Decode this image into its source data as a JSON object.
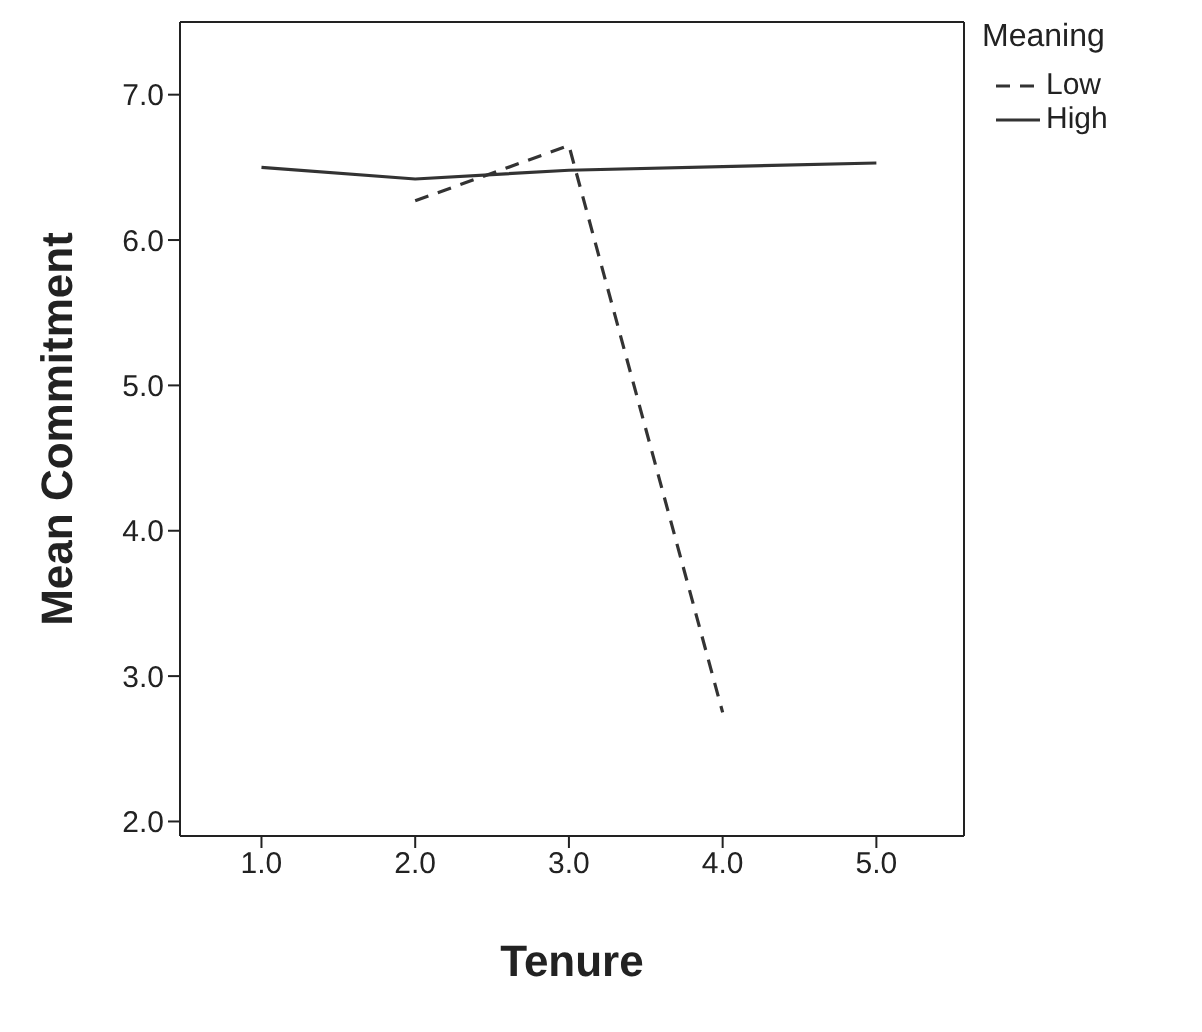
{
  "chart_data": {
    "type": "line",
    "xlabel": "Tenure",
    "ylabel": "Mean Commitment",
    "legend_title": "Meaning",
    "legend": "top right",
    "marker": "none",
    "xlim": [
      0.47,
      5.57
    ],
    "xticks": [
      {
        "value": 1,
        "label": "1.0"
      },
      {
        "value": 2,
        "label": "2.0"
      },
      {
        "value": 3,
        "label": "3.0"
      },
      {
        "value": 4,
        "label": "4.0"
      },
      {
        "value": 5,
        "label": "5.0"
      }
    ],
    "ylim": [
      1.9,
      7.5
    ],
    "yticks": [
      {
        "value": 2,
        "label": "2.0"
      },
      {
        "value": 3,
        "label": "3.0"
      },
      {
        "value": 4,
        "label": "4.0"
      },
      {
        "value": 5,
        "label": "5.0"
      },
      {
        "value": 6,
        "label": "6.0"
      },
      {
        "value": 7,
        "label": "7.0"
      }
    ],
    "series": [
      {
        "name": "Low",
        "color": "#333333",
        "line_style": "dashed",
        "x": [
          2,
          3,
          4
        ],
        "values": [
          6.27,
          6.65,
          2.75
        ]
      },
      {
        "name": "High",
        "color": "#333333",
        "line_style": "solid",
        "x": [
          1,
          2,
          3,
          5
        ],
        "values": [
          6.5,
          6.42,
          6.48,
          6.53
        ]
      }
    ]
  }
}
